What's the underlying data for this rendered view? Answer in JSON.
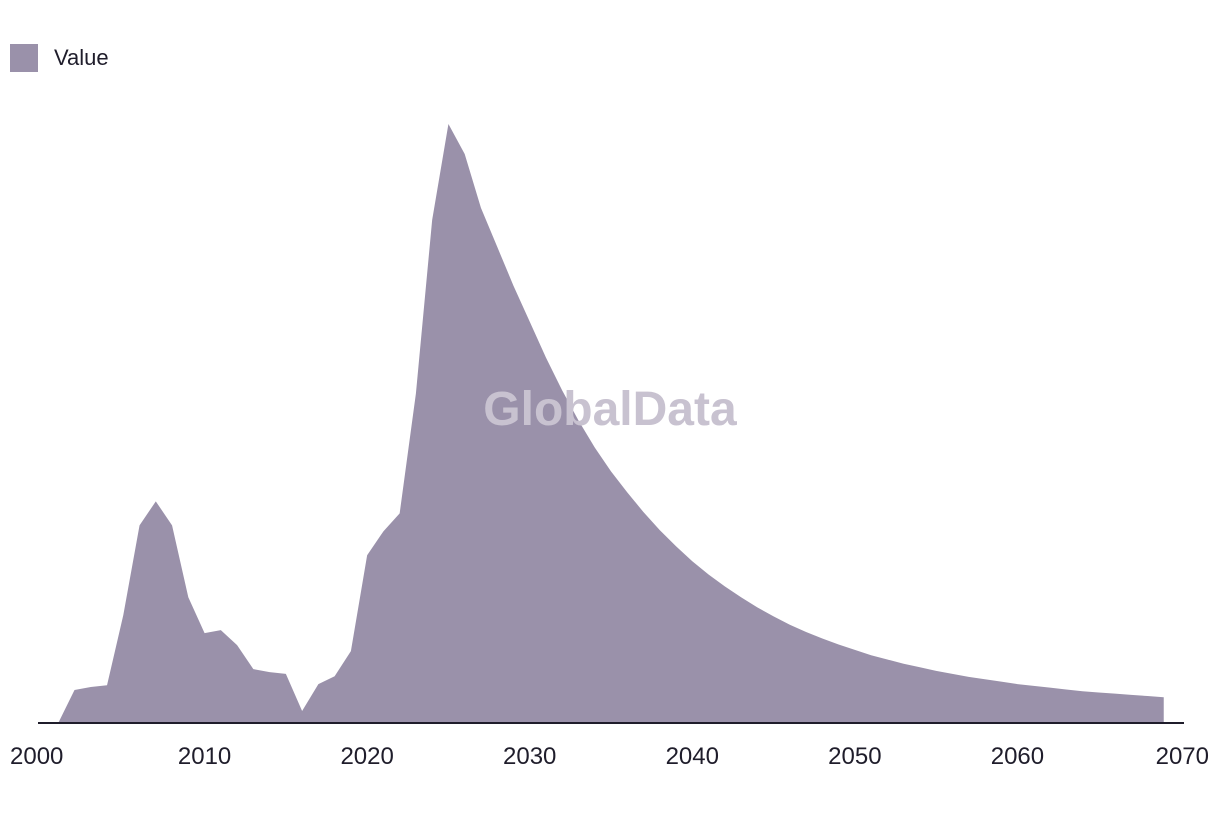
{
  "chart_data": {
    "type": "area",
    "title": "",
    "xlabel": "",
    "ylabel": "",
    "xlim": [
      2000,
      2070
    ],
    "ylim": [
      0,
      100
    ],
    "grid": false,
    "legend_position": "top-left",
    "series": [
      {
        "name": "Value",
        "color": "#9a91aa",
        "x": [
          2001,
          2002,
          2003,
          2004,
          2005,
          2006,
          2007,
          2008,
          2009,
          2010,
          2011,
          2012,
          2013,
          2014,
          2015,
          2016,
          2017,
          2018,
          2019,
          2020,
          2021,
          2022,
          2023,
          2024,
          2025,
          2026,
          2027,
          2028,
          2029,
          2030,
          2031,
          2032,
          2033,
          2034,
          2035,
          2036,
          2037,
          2038,
          2039,
          2040,
          2041,
          2042,
          2043,
          2044,
          2045,
          2046,
          2047,
          2048,
          2049,
          2050,
          2051,
          2052,
          2053,
          2054,
          2055,
          2056,
          2057,
          2058,
          2059,
          2060,
          2061,
          2062,
          2063,
          2064,
          2065,
          2066,
          2067,
          2068,
          2069
        ],
        "values": [
          0,
          5.5,
          6,
          6.3,
          18,
          33,
          37,
          33,
          21,
          15,
          15.5,
          13,
          9,
          8.5,
          8.2,
          2,
          6.5,
          7.8,
          12,
          28,
          32,
          35,
          55,
          84,
          100,
          95,
          86,
          79.5,
          73,
          67,
          61,
          55.5,
          50.5,
          46,
          42,
          38.5,
          35.2,
          32.2,
          29.5,
          27,
          24.8,
          22.8,
          21,
          19.3,
          17.8,
          16.4,
          15.2,
          14.1,
          13.1,
          12.2,
          11.3,
          10.6,
          9.9,
          9.3,
          8.7,
          8.2,
          7.7,
          7.3,
          6.9,
          6.5,
          6.2,
          5.9,
          5.6,
          5.3,
          5.1,
          4.9,
          4.7,
          4.5,
          4.3
        ]
      }
    ],
    "xticks": [
      2000,
      2010,
      2020,
      2030,
      2040,
      2050,
      2060,
      2070
    ]
  },
  "legend": {
    "label": "Value",
    "color": "#9a91aa"
  },
  "watermark": {
    "text": "GlobalData",
    "color": "#c8c2d0"
  },
  "axis": {
    "color": "#1f1d2b"
  }
}
